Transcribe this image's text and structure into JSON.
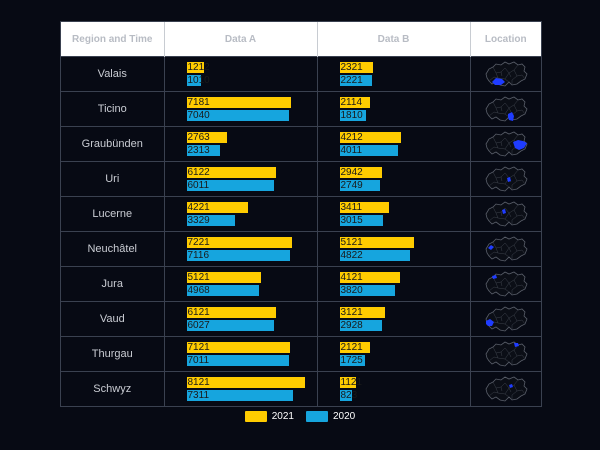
{
  "headers": {
    "region": "Region and Time",
    "data_a": "Data A",
    "data_b": "Data B",
    "location": "Location"
  },
  "legend": [
    {
      "label": "2021",
      "color": "#ffcc00"
    },
    {
      "label": "2020",
      "color": "#16a5de"
    }
  ],
  "chart_data": {
    "type": "table",
    "scale_max": 8500,
    "columns": [
      "Region and Time",
      "Data A",
      "Data B",
      "Location"
    ],
    "series_names": [
      "2021",
      "2020"
    ],
    "colors": {
      "2021": "#ffcc00",
      "2020": "#16a5de",
      "highlight": "#1f3cff",
      "map_outline": "#5a5f6a"
    },
    "rows": [
      {
        "region": "Valais",
        "a2021": 1212,
        "a2020": 1010,
        "b2021": 2321,
        "b2020": 2221,
        "highlight": "valais-icon"
      },
      {
        "region": "Ticino",
        "a2021": 7181,
        "a2020": 7040,
        "b2021": 2114,
        "b2020": 1810,
        "highlight": "ticino-icon"
      },
      {
        "region": "Graubünden",
        "a2021": 2763,
        "a2020": 2313,
        "b2021": 4212,
        "b2020": 4011,
        "highlight": "graubunden-icon"
      },
      {
        "region": "Uri",
        "a2021": 6122,
        "a2020": 6011,
        "b2021": 2942,
        "b2020": 2749,
        "highlight": "uri-icon"
      },
      {
        "region": "Lucerne",
        "a2021": 4221,
        "a2020": 3329,
        "b2021": 3411,
        "b2020": 3015,
        "highlight": "lucerne-icon"
      },
      {
        "region": "Neuchâtel",
        "a2021": 7221,
        "a2020": 7116,
        "b2021": 5121,
        "b2020": 4822,
        "highlight": "neuchatel-icon"
      },
      {
        "region": "Jura",
        "a2021": 5121,
        "a2020": 4968,
        "b2021": 4121,
        "b2020": 3820,
        "highlight": "jura-icon"
      },
      {
        "region": "Vaud",
        "a2021": 6121,
        "a2020": 6027,
        "b2021": 3121,
        "b2020": 2928,
        "highlight": "vaud-icon"
      },
      {
        "region": "Thurgau",
        "a2021": 7121,
        "a2020": 7011,
        "b2021": 2121,
        "b2020": 1725,
        "highlight": "thurgau-icon"
      },
      {
        "region": "Schwyz",
        "a2021": 8121,
        "a2020": 7311,
        "b2021": 1121,
        "b2020": 823,
        "highlight": "schwyz-icon"
      }
    ]
  }
}
